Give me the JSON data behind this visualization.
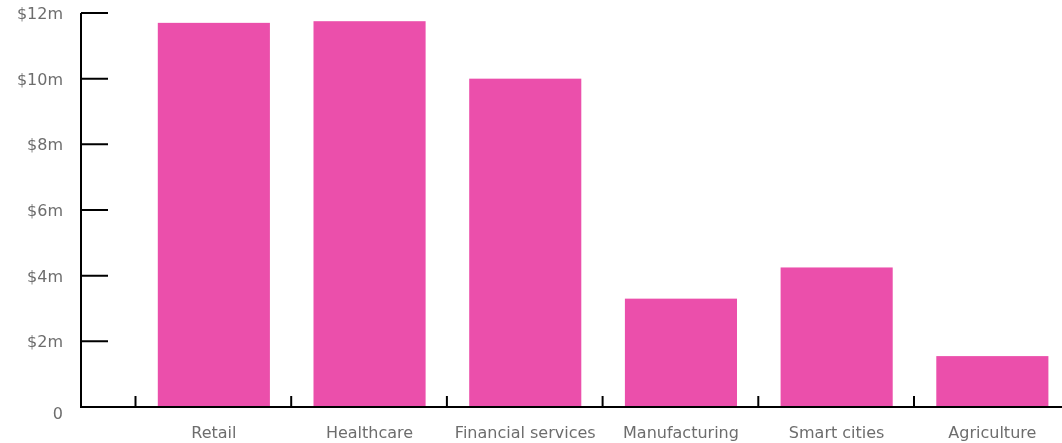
{
  "chart_data": {
    "type": "bar",
    "categories": [
      "Retail",
      "Healthcare",
      "Financial services",
      "Manufacturing",
      "Smart cities",
      "Agriculture"
    ],
    "values": [
      11.7,
      11.75,
      10.0,
      3.3,
      4.25,
      1.55
    ],
    "color": "#eb4fab",
    "ylim": [
      0,
      12
    ],
    "yticks": [
      {
        "value": 0,
        "label": "0"
      },
      {
        "value": 2,
        "label": "$2m"
      },
      {
        "value": 4,
        "label": "$4m"
      },
      {
        "value": 6,
        "label": "$6m"
      },
      {
        "value": 8,
        "label": "$8m"
      },
      {
        "value": 10,
        "label": "$10m"
      },
      {
        "value": 12,
        "label": "$12m"
      }
    ],
    "grid": false
  }
}
